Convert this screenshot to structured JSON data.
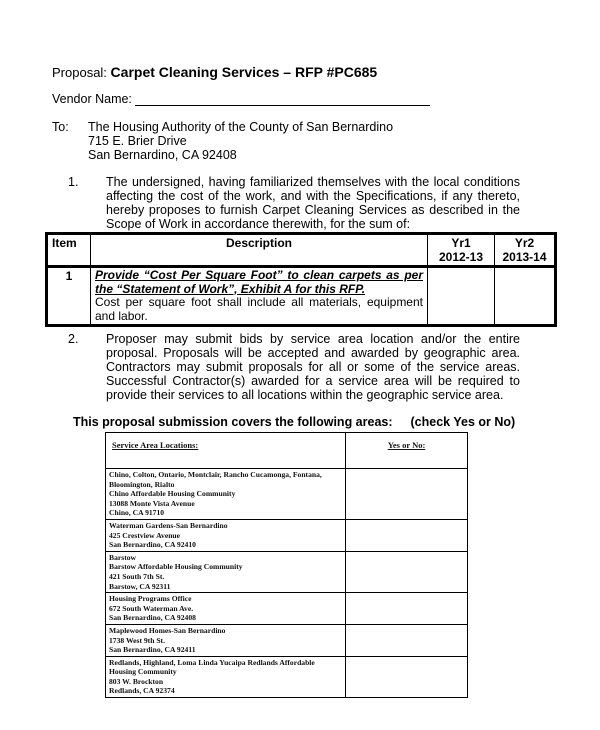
{
  "header": {
    "proposal_label": "Proposal: ",
    "proposal_title": "Carpet Cleaning Services – RFP #PC685",
    "vendor_label": "Vendor Name:"
  },
  "to": {
    "label": "To:",
    "lines": [
      "The Housing Authority of the County of San Bernardino",
      "715 E. Brier Drive",
      "San Bernardino, CA  92408"
    ]
  },
  "item1": {
    "number": "1.",
    "text": "The undersigned, having familiarized themselves with the local conditions affecting the cost of the work, and with the Specifications, if any thereto, hereby proposes to furnish Carpet Cleaning Services as described in the Scope of Work in accordance therewith, for the sum of:"
  },
  "bid_table": {
    "headers": {
      "item": "Item",
      "description": "Description",
      "yr1": "Yr1",
      "yr1_range": "2012-13",
      "yr2": "Yr2",
      "yr2_range": "2013-14"
    },
    "rows": [
      {
        "item": "1",
        "title": "Provide “Cost Per Square Foot” to clean carpets as per the “Statement of Work”, Exhibit A for this RFP.",
        "note": "Cost per square foot shall include all materials, equipment and labor.",
        "yr1": "",
        "yr2": ""
      }
    ]
  },
  "item2": {
    "number": "2.",
    "text": "Proposer may submit bids by service area location and/or the entire proposal.  Proposals will be accepted and awarded by geographic area.  Contractors may submit proposals for all or some of the service areas.  Successful Contractor(s) awarded for a service area will be required to provide their services to all locations within the geographic service area."
  },
  "areas_heading": {
    "text": "This proposal submission covers the following areas:",
    "hint": "(check Yes or No)"
  },
  "area_table": {
    "headers": {
      "location": "Service Area Locations:",
      "answer": "Yes or No:"
    },
    "rows": [
      {
        "lines": [
          "Chino, Colton, Ontario, Montclair, Rancho Cucamonga, Fontana, Bloomington, Rialto",
          "Chino Affordable Housing Community",
          "13088 Monte Vista Avenue",
          "Chino, CA 91710"
        ]
      },
      {
        "lines": [
          "Waterman Gardens-San Bernardino",
          "425 Crestview Avenue",
          "San Bernardino, CA 92410"
        ]
      },
      {
        "lines": [
          "Barstow",
          "Barstow Affordable Housing Community",
          "421 South 7th St.",
          "Barstow, CA 92311"
        ]
      },
      {
        "lines": [
          "Housing Programs Office",
          "672 South Waterman Ave.",
          "San Bernardino, CA 92408"
        ]
      },
      {
        "lines": [
          "Maplewood Homes-San Bernardino",
          "1738 West 9th St.",
          "San Bernardino, CA 92411"
        ]
      },
      {
        "lines": [
          "Redlands, Highland, Loma Linda Yucaipa  Redlands Affordable Housing Community",
          "803 W. Brockton",
          "Redlands, CA 92374"
        ]
      }
    ]
  }
}
